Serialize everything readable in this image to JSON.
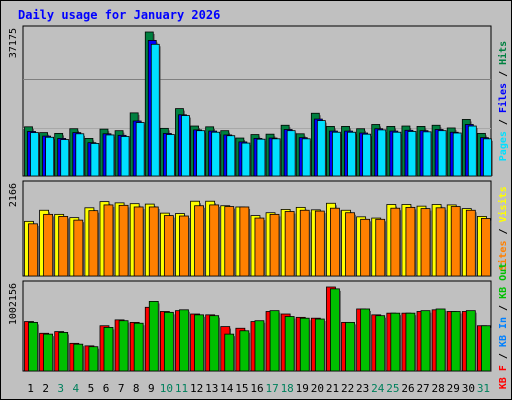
{
  "chart_data": {
    "type": "bar",
    "title": "Daily usage for January 2026",
    "categories": [
      "1",
      "2",
      "3",
      "4",
      "5",
      "6",
      "7",
      "8",
      "9",
      "10",
      "11",
      "12",
      "13",
      "14",
      "15",
      "16",
      "17",
      "18",
      "19",
      "20",
      "21",
      "22",
      "23",
      "24",
      "25",
      "26",
      "27",
      "28",
      "29",
      "30",
      "31"
    ],
    "weekend_days": [
      3,
      4,
      10,
      11,
      17,
      18,
      24,
      25,
      31
    ],
    "panels": [
      {
        "name": "hits-files-pages",
        "ymax": 37175,
        "ymax_label": "37175",
        "axis_label_parts": [
          {
            "text": "Pages",
            "color": "#00e0ff"
          },
          {
            "text": " / ",
            "color": "#000000"
          },
          {
            "text": "Files",
            "color": "#0000ff"
          },
          {
            "text": " / ",
            "color": "#000000"
          },
          {
            "text": "Hits",
            "color": "#008040"
          }
        ],
        "series": [
          {
            "name": "Hits",
            "color": "#008040",
            "values": [
              12700,
              11200,
              11000,
              12200,
              9700,
              12100,
              11700,
              16300,
              37175,
              12300,
              17400,
              12900,
              12700,
              11700,
              9800,
              10700,
              10800,
              13100,
              10900,
              16200,
              12800,
              12800,
              12200,
              13300,
              12800,
              12900,
              12800,
              13100,
              12400,
              14600,
              11000
            ]
          },
          {
            "name": "Files",
            "color": "#0000ff",
            "values": [
              11500,
              10300,
              9700,
              11200,
              8600,
              10900,
              10500,
              14200,
              35000,
              11000,
              15800,
              11900,
              11600,
              10600,
              8800,
              9700,
              9800,
              12000,
              9900,
              14700,
              11600,
              11600,
              11100,
              12200,
              11600,
              11800,
              11700,
              12000,
              11300,
              13300,
              9900
            ]
          },
          {
            "name": "Pages",
            "color": "#00e0ff",
            "values": [
              11200,
              10000,
              9400,
              10900,
              8400,
              10600,
              10200,
              13800,
              34000,
              10700,
              15600,
              11700,
              11300,
              10400,
              8500,
              9500,
              9600,
              11700,
              9600,
              14300,
              11300,
              11300,
              10800,
              11900,
              11300,
              11500,
              11400,
              11700,
              11100,
              12900,
              9600
            ]
          }
        ]
      },
      {
        "name": "visits-sites",
        "ymax": 2166,
        "ymax_label": "2166",
        "axis_label_parts": [
          {
            "text": "Sites",
            "color": "#ff8000"
          },
          {
            "text": " / ",
            "color": "#000000"
          },
          {
            "text": "Visits",
            "color": "#ffff00"
          }
        ],
        "series": [
          {
            "name": "Visits",
            "color": "#ffff00",
            "values": [
              1330,
              1600,
              1500,
              1420,
              1660,
              1810,
              1780,
              1760,
              1750,
              1530,
              1520,
              1820,
              1820,
              1710,
              1680,
              1470,
              1540,
              1620,
              1670,
              1610,
              1770,
              1600,
              1440,
              1410,
              1740,
              1740,
              1700,
              1740,
              1730,
              1640,
              1450
            ]
          },
          {
            "name": "Sites",
            "color": "#ff8000",
            "values": [
              1270,
              1500,
              1450,
              1360,
              1590,
              1730,
              1720,
              1680,
              1680,
              1470,
              1460,
              1710,
              1730,
              1690,
              1680,
              1410,
              1500,
              1570,
              1600,
              1580,
              1650,
              1540,
              1380,
              1380,
              1650,
              1670,
              1640,
              1660,
              1690,
              1600,
              1400
            ]
          }
        ]
      },
      {
        "name": "kb",
        "ymax": 1002156,
        "ymax_label": "1002156",
        "axis_label_parts": [
          {
            "text": "KB F",
            "color": "#ff0000"
          },
          {
            "text": " / ",
            "color": "#000000"
          },
          {
            "text": "KB In",
            "color": "#0080ff"
          },
          {
            "text": " / ",
            "color": "#000000"
          },
          {
            "text": "KB Out",
            "color": "#00c000"
          }
        ],
        "series": [
          {
            "name": "KB F",
            "color": "#ff0000",
            "values": [
              590000,
              450000,
              470000,
              330000,
              300000,
              540000,
              610000,
              580000,
              760000,
              710000,
              720000,
              680000,
              670000,
              530000,
              510000,
              590000,
              710000,
              680000,
              640000,
              630000,
              1002156,
              580000,
              740000,
              670000,
              690000,
              690000,
              710000,
              730000,
              710000,
              710000,
              540000
            ]
          },
          {
            "name": "KB Out",
            "color": "#00c000",
            "values": [
              580000,
              440000,
              460000,
              320000,
              290000,
              520000,
              600000,
              570000,
              830000,
              700000,
              730000,
              670000,
              660000,
              440000,
              480000,
              600000,
              720000,
              650000,
              630000,
              620000,
              980000,
              580000,
              740000,
              660000,
              690000,
              690000,
              720000,
              740000,
              710000,
              720000,
              540000
            ]
          }
        ]
      }
    ]
  }
}
